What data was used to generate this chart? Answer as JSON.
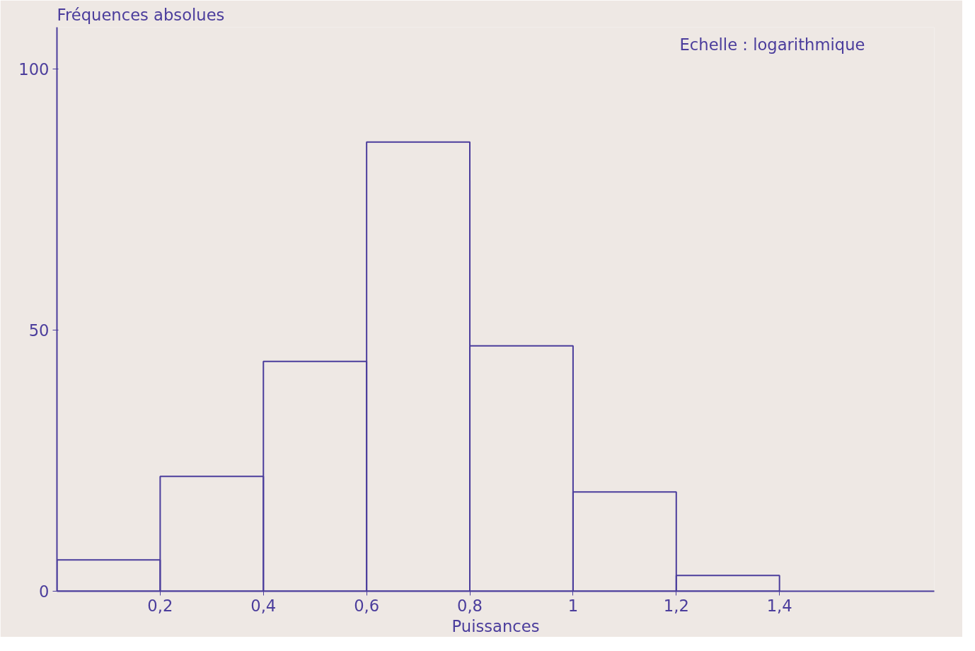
{
  "chart_data": {
    "type": "histogram",
    "xlabel": "Puissances",
    "ylabel": "Fréquences absolues",
    "annotations": [
      "Echelle : logarithmique"
    ],
    "bins": [
      0,
      0.2,
      0.4,
      0.6,
      0.8,
      1,
      1.2,
      1.4
    ],
    "values": [
      6,
      22,
      44,
      86,
      47,
      19,
      3
    ],
    "color": "#4b3d9c",
    "xlim": [
      0,
      1.7
    ],
    "ylim": [
      0,
      108
    ],
    "xticks": [
      {
        "value": 0.2,
        "label": "0,2"
      },
      {
        "value": 0.4,
        "label": "0,4"
      },
      {
        "value": 0.6,
        "label": "0,6"
      },
      {
        "value": 0.8,
        "label": "0,8"
      },
      {
        "value": 1,
        "label": "1"
      },
      {
        "value": 1.2,
        "label": "1,2"
      },
      {
        "value": 1.4,
        "label": "1,4"
      }
    ],
    "yticks": [
      0,
      50,
      100
    ],
    "grid": false
  }
}
